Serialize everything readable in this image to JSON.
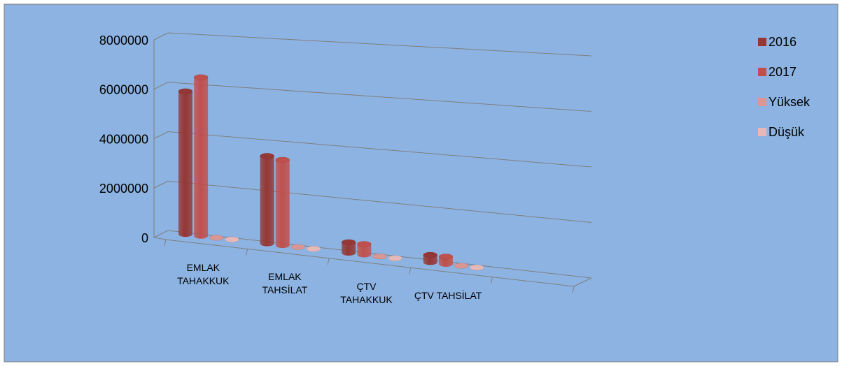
{
  "chart_data": {
    "type": "bar3d",
    "categories": [
      "EMLAK TAHAKKUK",
      "EMLAK TAHSİLAT",
      "ÇTV TAHAKKUK",
      "ÇTV TAHSİLAT"
    ],
    "series": [
      {
        "name": "2016",
        "color": "#953735",
        "values": [
          5700000,
          3400000,
          400000,
          270000
        ]
      },
      {
        "name": "2017",
        "color": "#c0504d",
        "values": [
          6300000,
          3300000,
          400000,
          270000
        ]
      },
      {
        "name": "Yüksek",
        "color": "#d99694",
        "values": [
          0,
          0,
          0,
          0
        ]
      },
      {
        "name": "Düşük",
        "color": "#e6b9b8",
        "values": [
          0,
          0,
          0,
          0
        ]
      }
    ],
    "ylim": [
      0,
      8000000
    ],
    "yticks": [
      0,
      2000000,
      4000000,
      6000000,
      8000000
    ],
    "grid": true,
    "legend": "right"
  }
}
